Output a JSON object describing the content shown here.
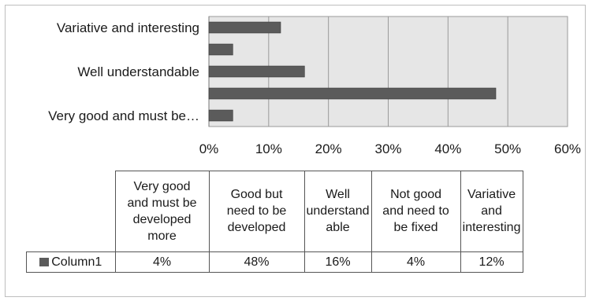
{
  "chart_data": {
    "type": "bar",
    "orientation": "horizontal",
    "categories": [
      "Very good and must be developed more",
      "Good but need to be developed",
      "Well understandable",
      "Not good and need to be fixed",
      "Variative and interesting"
    ],
    "axis_category_labels": [
      "Very good and must be…",
      "",
      "Well understandable",
      "",
      "Variative and interesting"
    ],
    "series": [
      {
        "name": "Column1",
        "values": [
          4,
          48,
          16,
          4,
          12
        ],
        "color": "#5b5b5b"
      }
    ],
    "xlim": [
      0,
      60
    ],
    "x_ticks": [
      0,
      10,
      20,
      30,
      40,
      50,
      60
    ],
    "x_tick_labels": [
      "0%",
      "10%",
      "20%",
      "30%",
      "40%",
      "50%",
      "60%"
    ],
    "grid": true,
    "plot_background": "#e6e6e6",
    "data_table": {
      "headers": [
        [
          "Very good",
          "and must be",
          "developed",
          "more"
        ],
        [
          "Good but",
          "need to be",
          "developed"
        ],
        [
          "Well",
          "understand",
          "able"
        ],
        [
          "Not good",
          "and need to",
          "be fixed"
        ],
        [
          "Variative",
          "and",
          "interesting"
        ]
      ],
      "row_label": "Column1",
      "cells": [
        "4%",
        "48%",
        "16%",
        "4%",
        "12%"
      ]
    }
  }
}
